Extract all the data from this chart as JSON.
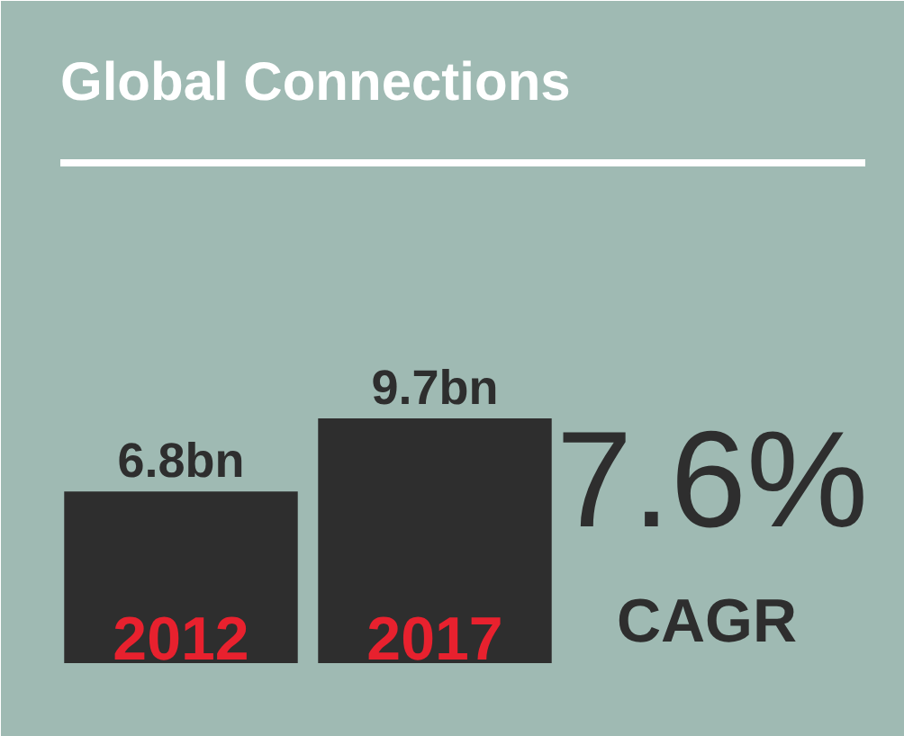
{
  "chart_data": {
    "type": "bar",
    "title": "Global Connections",
    "categories": [
      "2012",
      "2017"
    ],
    "values": [
      6.8,
      9.7
    ],
    "value_labels": [
      "6.8bn",
      "9.7bn"
    ],
    "color": "#2e2e2e",
    "annotations": [
      "7.6%",
      "CAGR"
    ]
  }
}
